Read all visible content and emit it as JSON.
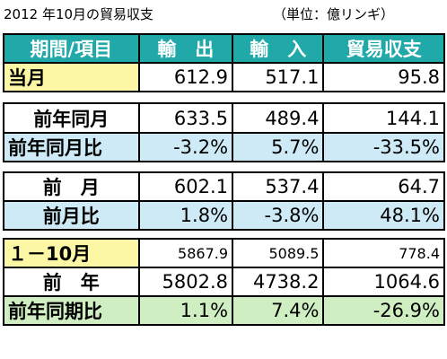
{
  "title": "2012 年10月の貿易収支",
  "unit": "（単位：億リンギ）",
  "header": [
    "期間/項目",
    "輸　出",
    "輸　入",
    "貿易収支"
  ],
  "rows": {
    "current_month": {
      "label": "当月",
      "export": "612.9",
      "import": "517.1",
      "balance": "95.8"
    },
    "same_month_last_year": {
      "label": "前年同月",
      "export": "633.5",
      "import": "489.4",
      "balance": "144.1"
    },
    "yoy_month": {
      "label": "前年同月比",
      "export": "-3.2%",
      "import": "5.7%",
      "balance": "-33.5%"
    },
    "prev_month": {
      "label": "前　月",
      "export": "602.1",
      "import": "537.4",
      "balance": "64.7"
    },
    "mom": {
      "label": "前月比",
      "export": "1.8%",
      "import": "-3.8%",
      "balance": "48.1%"
    },
    "ytd": {
      "label": "１－10月",
      "export": "5867.9",
      "import": "5089.5",
      "balance": "778.4"
    },
    "prev_year": {
      "label": "前　年",
      "export": "5802.8",
      "import": "4738.2",
      "balance": "1064.6"
    },
    "yoy_period": {
      "label": "前年同期比",
      "export": "1.1%",
      "import": "7.4%",
      "balance": "-26.9%"
    }
  }
}
